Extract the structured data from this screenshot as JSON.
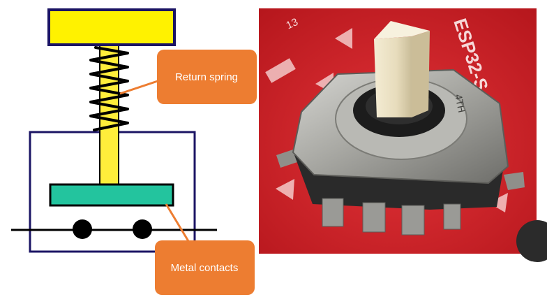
{
  "diagram": {
    "callouts": [
      {
        "id": "return-spring",
        "label": "Return spring"
      },
      {
        "id": "metal-contacts",
        "label": "Metal contacts"
      }
    ]
  },
  "photo": {
    "pcb_silkscreen": [
      "13",
      "ESP32-S",
      "4TH"
    ]
  },
  "colors": {
    "accent": "#ED7D31",
    "button_cap": "#FFF200",
    "plunger": "#FFEE3B",
    "contact_plate": "#23C49E",
    "outline": "#1B1464",
    "pcb_red": "#D9262C"
  }
}
